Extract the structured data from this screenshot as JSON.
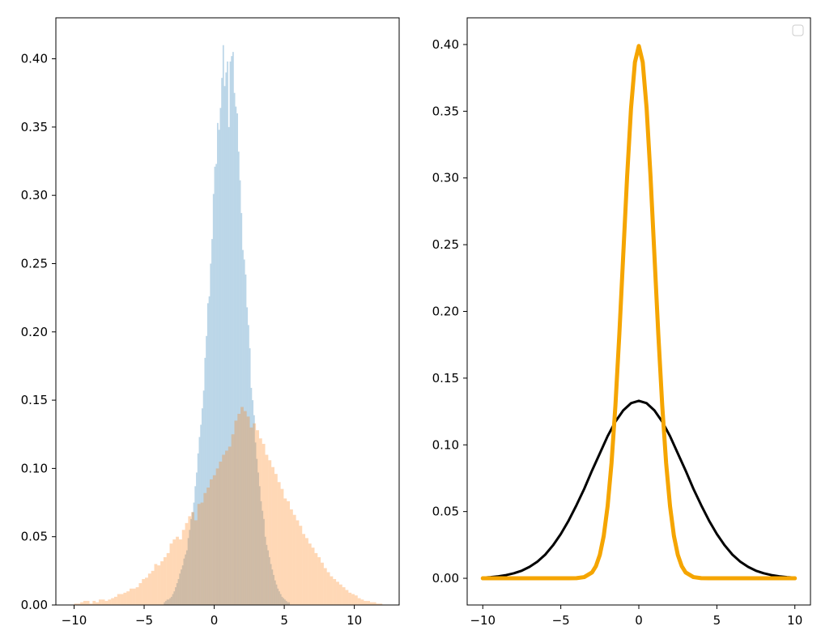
{
  "chart_data": [
    {
      "type": "histogram",
      "title": "",
      "xlabel": "",
      "ylabel": "",
      "xlim": [
        -11.3,
        13.2
      ],
      "ylim": [
        0,
        0.43
      ],
      "xticks": [
        -10,
        -5,
        0,
        5,
        10
      ],
      "yticks": [
        0.0,
        0.05,
        0.1,
        0.15,
        0.2,
        0.25,
        0.3,
        0.35,
        0.4
      ],
      "x_tick_labels": [
        "−10",
        "−5",
        "0",
        "5",
        "10"
      ],
      "y_tick_labels": [
        "0.00",
        "0.05",
        "0.10",
        "0.15",
        "0.20",
        "0.25",
        "0.30",
        "0.35",
        "0.40"
      ],
      "alpha": 0.3,
      "series": [
        {
          "color": "#1f77b4",
          "bin_start": -3.6,
          "bin_width": 0.1,
          "density": [
            0.002,
            0.003,
            0.004,
            0.004,
            0.005,
            0.006,
            0.008,
            0.01,
            0.013,
            0.016,
            0.019,
            0.023,
            0.026,
            0.029,
            0.034,
            0.037,
            0.04,
            0.049,
            0.055,
            0.063,
            0.068,
            0.075,
            0.087,
            0.097,
            0.111,
            0.123,
            0.132,
            0.144,
            0.157,
            0.181,
            0.197,
            0.221,
            0.226,
            0.25,
            0.268,
            0.301,
            0.321,
            0.323,
            0.353,
            0.348,
            0.364,
            0.386,
            0.41,
            0.38,
            0.39,
            0.398,
            0.35,
            0.398,
            0.402,
            0.405,
            0.375,
            0.365,
            0.36,
            0.332,
            0.311,
            0.287,
            0.26,
            0.253,
            0.242,
            0.218,
            0.205,
            0.188,
            0.159,
            0.15,
            0.139,
            0.119,
            0.107,
            0.097,
            0.087,
            0.076,
            0.069,
            0.063,
            0.05,
            0.044,
            0.04,
            0.035,
            0.03,
            0.026,
            0.022,
            0.018,
            0.015,
            0.012,
            0.01,
            0.008,
            0.006,
            0.005,
            0.004,
            0.003,
            0.002,
            0.002
          ]
        },
        {
          "color": "#ff7f0e",
          "bin_start": -10.0,
          "bin_width": 0.22,
          "density": [
            0.001,
            0.001,
            0.002,
            0.003,
            0.003,
            0.001,
            0.003,
            0.002,
            0.004,
            0.004,
            0.003,
            0.004,
            0.005,
            0.006,
            0.008,
            0.008,
            0.009,
            0.01,
            0.012,
            0.012,
            0.013,
            0.016,
            0.019,
            0.02,
            0.023,
            0.025,
            0.03,
            0.029,
            0.032,
            0.035,
            0.038,
            0.045,
            0.048,
            0.05,
            0.048,
            0.055,
            0.06,
            0.065,
            0.068,
            0.062,
            0.074,
            0.075,
            0.082,
            0.086,
            0.092,
            0.095,
            0.1,
            0.105,
            0.11,
            0.113,
            0.116,
            0.125,
            0.135,
            0.14,
            0.145,
            0.142,
            0.138,
            0.13,
            0.133,
            0.128,
            0.122,
            0.118,
            0.11,
            0.106,
            0.101,
            0.096,
            0.09,
            0.085,
            0.078,
            0.076,
            0.07,
            0.066,
            0.062,
            0.058,
            0.052,
            0.049,
            0.045,
            0.042,
            0.038,
            0.035,
            0.031,
            0.027,
            0.024,
            0.021,
            0.019,
            0.017,
            0.015,
            0.013,
            0.011,
            0.009,
            0.008,
            0.007,
            0.005,
            0.004,
            0.003,
            0.003,
            0.002,
            0.002,
            0.001,
            0.001
          ]
        }
      ]
    },
    {
      "type": "line",
      "title": "",
      "xlabel": "",
      "ylabel": "",
      "xlim": [
        -11,
        11
      ],
      "ylim": [
        -0.02,
        0.42
      ],
      "xticks": [
        -10,
        -5,
        0,
        5,
        10
      ],
      "yticks": [
        0.0,
        0.05,
        0.1,
        0.15,
        0.2,
        0.25,
        0.3,
        0.35,
        0.4
      ],
      "x_tick_labels": [
        "−10",
        "−5",
        "0",
        "5",
        "10"
      ],
      "y_tick_labels": [
        "0.00",
        "0.05",
        "0.10",
        "0.15",
        "0.20",
        "0.25",
        "0.30",
        "0.35",
        "0.40"
      ],
      "legend": "top-right",
      "series": [
        {
          "color": "#000000",
          "stroke": 3,
          "x": [
            -10,
            -9.5,
            -9,
            -8.5,
            -8,
            -7.5,
            -7,
            -6.5,
            -6,
            -5.5,
            -5,
            -4.5,
            -4,
            -3.5,
            -3,
            -2.5,
            -2,
            -1.5,
            -1,
            -0.5,
            0,
            0.5,
            1,
            1.5,
            2,
            2.5,
            3,
            3.5,
            4,
            4.5,
            5,
            5.5,
            6,
            6.5,
            7,
            7.5,
            8,
            8.5,
            9,
            9.5,
            10
          ],
          "y": [
            0.0005,
            0.0009,
            0.0015,
            0.0024,
            0.0038,
            0.0057,
            0.0086,
            0.0125,
            0.0177,
            0.0247,
            0.0332,
            0.0432,
            0.0547,
            0.067,
            0.0807,
            0.0936,
            0.1065,
            0.1174,
            0.1258,
            0.1312,
            0.133,
            0.1312,
            0.1258,
            0.1174,
            0.1065,
            0.0936,
            0.0807,
            0.067,
            0.0547,
            0.0432,
            0.0332,
            0.0247,
            0.0177,
            0.0125,
            0.0086,
            0.0057,
            0.0038,
            0.0024,
            0.0015,
            0.0009,
            0.0005
          ]
        },
        {
          "color": "#f5a500",
          "stroke": 5,
          "x": [
            -10,
            -6,
            -5,
            -4.5,
            -4,
            -3.5,
            -3,
            -2.75,
            -2.5,
            -2.25,
            -2,
            -1.75,
            -1.5,
            -1.25,
            -1,
            -0.75,
            -0.5,
            -0.25,
            0,
            0.25,
            0.5,
            0.75,
            1,
            1.25,
            1.5,
            1.75,
            2,
            2.25,
            2.5,
            2.75,
            3,
            3.5,
            4,
            4.5,
            5,
            6,
            10
          ],
          "y": [
            0.0,
            0.0,
            0.0,
            0.0,
            0.0001,
            0.0009,
            0.0044,
            0.0091,
            0.0175,
            0.0317,
            0.054,
            0.0863,
            0.1295,
            0.1826,
            0.242,
            0.3011,
            0.3521,
            0.3867,
            0.3989,
            0.3867,
            0.3521,
            0.3011,
            0.242,
            0.1826,
            0.1295,
            0.0863,
            0.054,
            0.0317,
            0.0175,
            0.0091,
            0.0044,
            0.0009,
            0.0001,
            0.0,
            0.0,
            0.0,
            0.0
          ]
        }
      ]
    }
  ]
}
